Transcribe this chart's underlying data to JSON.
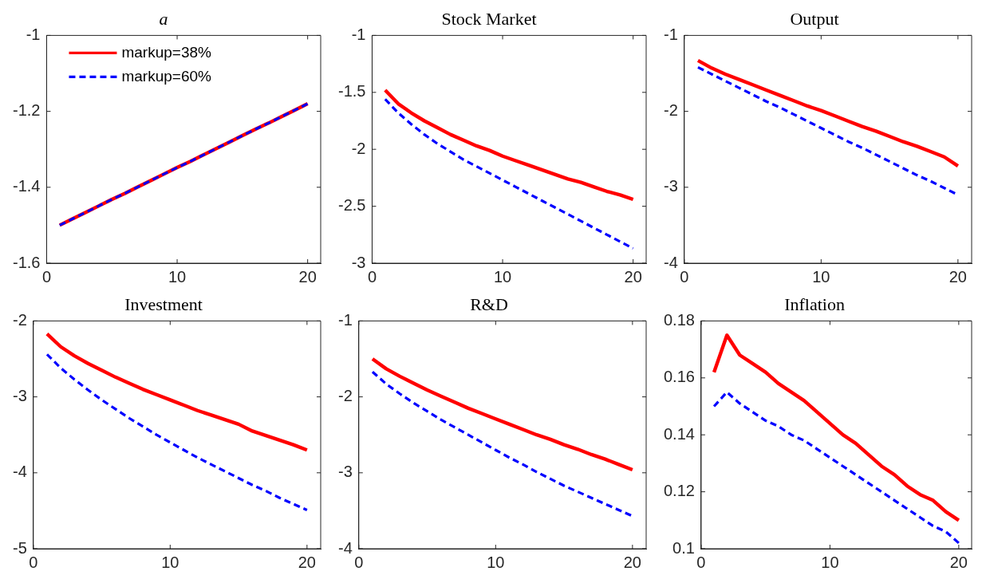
{
  "chart_data": [
    {
      "type": "line",
      "title": "a",
      "x": [
        1,
        2,
        3,
        4,
        5,
        6,
        7,
        8,
        9,
        10,
        11,
        12,
        13,
        14,
        15,
        16,
        17,
        18,
        19,
        20
      ],
      "xlim": [
        0,
        21
      ],
      "xticks": [
        0,
        10,
        20
      ],
      "ylim": [
        -1.6,
        -1
      ],
      "yticks": [
        -1.6,
        -1.4,
        -1.2,
        -1
      ],
      "legend": "top left",
      "series": [
        {
          "name": "markup=38%",
          "color": "#ff0000",
          "line_style": "solid",
          "values": [
            -1.5,
            -1.483,
            -1.466,
            -1.449,
            -1.432,
            -1.416,
            -1.399,
            -1.382,
            -1.365,
            -1.348,
            -1.332,
            -1.315,
            -1.298,
            -1.281,
            -1.264,
            -1.247,
            -1.231,
            -1.214,
            -1.197,
            -1.18
          ]
        },
        {
          "name": "markup=60%",
          "color": "#0000ff",
          "line_style": "dashed",
          "values": [
            -1.5,
            -1.483,
            -1.466,
            -1.449,
            -1.432,
            -1.416,
            -1.399,
            -1.382,
            -1.365,
            -1.348,
            -1.332,
            -1.315,
            -1.298,
            -1.281,
            -1.264,
            -1.247,
            -1.231,
            -1.214,
            -1.197,
            -1.18
          ]
        }
      ]
    },
    {
      "type": "line",
      "title": "Stock Market",
      "x": [
        1,
        2,
        3,
        4,
        5,
        6,
        7,
        8,
        9,
        10,
        11,
        12,
        13,
        14,
        15,
        16,
        17,
        18,
        19,
        20
      ],
      "xlim": [
        0,
        21
      ],
      "xticks": [
        0,
        10,
        20
      ],
      "ylim": [
        -3,
        -1
      ],
      "yticks": [
        -3,
        -2.5,
        -2,
        -1.5,
        -1
      ],
      "series": [
        {
          "color": "#ff0000",
          "line_style": "solid",
          "values": [
            -1.48,
            -1.6,
            -1.68,
            -1.75,
            -1.81,
            -1.87,
            -1.92,
            -1.97,
            -2.01,
            -2.06,
            -2.1,
            -2.14,
            -2.18,
            -2.22,
            -2.26,
            -2.29,
            -2.33,
            -2.37,
            -2.4,
            -2.44
          ]
        },
        {
          "color": "#0000ff",
          "line_style": "dashed",
          "values": [
            -1.56,
            -1.68,
            -1.78,
            -1.87,
            -1.95,
            -2.02,
            -2.09,
            -2.15,
            -2.21,
            -2.27,
            -2.33,
            -2.39,
            -2.45,
            -2.51,
            -2.57,
            -2.63,
            -2.69,
            -2.75,
            -2.81,
            -2.87
          ]
        }
      ]
    },
    {
      "type": "line",
      "title": "Output",
      "x": [
        1,
        2,
        3,
        4,
        5,
        6,
        7,
        8,
        9,
        10,
        11,
        12,
        13,
        14,
        15,
        16,
        17,
        18,
        19,
        20
      ],
      "xlim": [
        0,
        21
      ],
      "xticks": [
        0,
        10,
        20
      ],
      "ylim": [
        -4,
        -1
      ],
      "yticks": [
        -4,
        -3,
        -2,
        -1
      ],
      "series": [
        {
          "color": "#ff0000",
          "line_style": "solid",
          "values": [
            -1.33,
            -1.43,
            -1.51,
            -1.58,
            -1.65,
            -1.72,
            -1.79,
            -1.86,
            -1.93,
            -1.99,
            -2.06,
            -2.13,
            -2.2,
            -2.26,
            -2.33,
            -2.4,
            -2.46,
            -2.53,
            -2.6,
            -2.72
          ]
        },
        {
          "color": "#0000ff",
          "line_style": "dashed",
          "values": [
            -1.42,
            -1.51,
            -1.6,
            -1.69,
            -1.78,
            -1.87,
            -1.95,
            -2.04,
            -2.13,
            -2.22,
            -2.31,
            -2.4,
            -2.48,
            -2.57,
            -2.66,
            -2.75,
            -2.84,
            -2.92,
            -3.01,
            -3.1
          ]
        }
      ]
    },
    {
      "type": "line",
      "title": "Investment",
      "x": [
        1,
        2,
        3,
        4,
        5,
        6,
        7,
        8,
        9,
        10,
        11,
        12,
        13,
        14,
        15,
        16,
        17,
        18,
        19,
        20
      ],
      "xlim": [
        0,
        21
      ],
      "xticks": [
        0,
        10,
        20
      ],
      "ylim": [
        -5,
        -2
      ],
      "yticks": [
        -5,
        -4,
        -3,
        -2
      ],
      "series": [
        {
          "color": "#ff0000",
          "line_style": "solid",
          "values": [
            -2.17,
            -2.34,
            -2.46,
            -2.56,
            -2.65,
            -2.74,
            -2.82,
            -2.9,
            -2.97,
            -3.04,
            -3.11,
            -3.18,
            -3.24,
            -3.3,
            -3.36,
            -3.45,
            -3.51,
            -3.57,
            -3.63,
            -3.7
          ]
        },
        {
          "color": "#0000ff",
          "line_style": "dashed",
          "values": [
            -2.44,
            -2.62,
            -2.77,
            -2.91,
            -3.04,
            -3.16,
            -3.28,
            -3.39,
            -3.5,
            -3.6,
            -3.7,
            -3.8,
            -3.89,
            -3.98,
            -4.07,
            -4.16,
            -4.24,
            -4.33,
            -4.41,
            -4.49
          ]
        }
      ]
    },
    {
      "type": "line",
      "title": "R&D",
      "x": [
        1,
        2,
        3,
        4,
        5,
        6,
        7,
        8,
        9,
        10,
        11,
        12,
        13,
        14,
        15,
        16,
        17,
        18,
        19,
        20
      ],
      "xlim": [
        0,
        21
      ],
      "xticks": [
        0,
        10,
        20
      ],
      "ylim": [
        -4,
        -1
      ],
      "yticks": [
        -4,
        -3,
        -2,
        -1
      ],
      "series": [
        {
          "color": "#ff0000",
          "line_style": "solid",
          "values": [
            -1.5,
            -1.63,
            -1.73,
            -1.82,
            -1.91,
            -1.99,
            -2.07,
            -2.15,
            -2.22,
            -2.29,
            -2.36,
            -2.43,
            -2.5,
            -2.56,
            -2.63,
            -2.69,
            -2.76,
            -2.82,
            -2.89,
            -2.96
          ]
        },
        {
          "color": "#0000ff",
          "line_style": "dashed",
          "values": [
            -1.67,
            -1.83,
            -1.96,
            -2.08,
            -2.19,
            -2.3,
            -2.4,
            -2.5,
            -2.6,
            -2.7,
            -2.8,
            -2.89,
            -2.99,
            -3.08,
            -3.17,
            -3.25,
            -3.33,
            -3.41,
            -3.49,
            -3.57
          ]
        }
      ]
    },
    {
      "type": "line",
      "title": "Inflation",
      "x": [
        1,
        2,
        3,
        4,
        5,
        6,
        7,
        8,
        9,
        10,
        11,
        12,
        13,
        14,
        15,
        16,
        17,
        18,
        19,
        20
      ],
      "xlim": [
        0,
        21
      ],
      "xticks": [
        0,
        10,
        20
      ],
      "ylim": [
        0.1,
        0.18
      ],
      "yticks": [
        0.1,
        0.12,
        0.14,
        0.16,
        0.18
      ],
      "series": [
        {
          "color": "#ff0000",
          "line_style": "solid",
          "values": [
            0.162,
            0.175,
            0.168,
            0.165,
            0.162,
            0.158,
            0.155,
            0.152,
            0.148,
            0.144,
            0.14,
            0.137,
            0.133,
            0.129,
            0.126,
            0.122,
            0.119,
            0.117,
            0.113,
            0.11
          ]
        },
        {
          "color": "#0000ff",
          "line_style": "dashed",
          "values": [
            0.15,
            0.155,
            0.151,
            0.148,
            0.145,
            0.143,
            0.14,
            0.138,
            0.135,
            0.132,
            0.129,
            0.126,
            0.123,
            0.12,
            0.117,
            0.114,
            0.111,
            0.108,
            0.106,
            0.102
          ]
        }
      ]
    }
  ]
}
